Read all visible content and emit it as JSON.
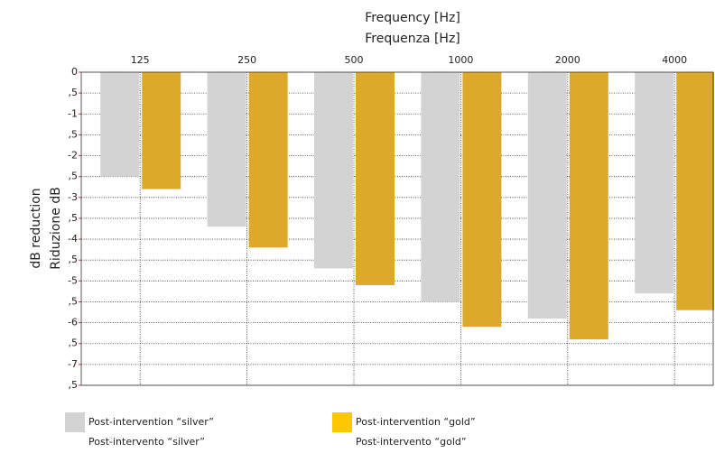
{
  "chart_data": {
    "type": "bar",
    "x_label": [
      "Frequency [Hz]",
      "Frequenza [Hz]"
    ],
    "y_label": [
      "dB reduction",
      "Riduzione dB"
    ],
    "categories": [
      "125",
      "250",
      "500",
      "1000",
      "2000",
      "4000"
    ],
    "series": [
      {
        "name": "Post-intervention “silver”",
        "name_alt": "Post-intervento “silver”",
        "color": "#d3d3d3",
        "legend_color": "#d3d3d3",
        "values": [
          -2.5,
          -3.7,
          -4.7,
          -5.5,
          -5.9,
          -5.3
        ]
      },
      {
        "name": "Post-intervention “gold”",
        "name_alt": "Post-intervento “gold”",
        "color": "#dca92a",
        "legend_color": "#fdc800",
        "values": [
          -2.8,
          -4.2,
          -5.1,
          -6.1,
          -6.4,
          -5.7
        ]
      }
    ],
    "ylim": [
      0,
      -7.5
    ],
    "yticks": [
      0,
      {
        "value": -0.5,
        "label": ",5"
      },
      -1,
      {
        "value": -1.5,
        "label": ",5"
      },
      -2,
      {
        "value": -2.5,
        "label": ",5"
      },
      -3,
      {
        "value": -3.5,
        "label": ",5"
      },
      -4,
      {
        "value": -4.5,
        "label": ",5"
      },
      -5,
      {
        "value": -5.5,
        "label": ",5"
      },
      -6,
      {
        "value": -6.5,
        "label": ",5"
      },
      -7,
      {
        "value": -7.5,
        "label": ",5"
      }
    ],
    "grid": true
  }
}
